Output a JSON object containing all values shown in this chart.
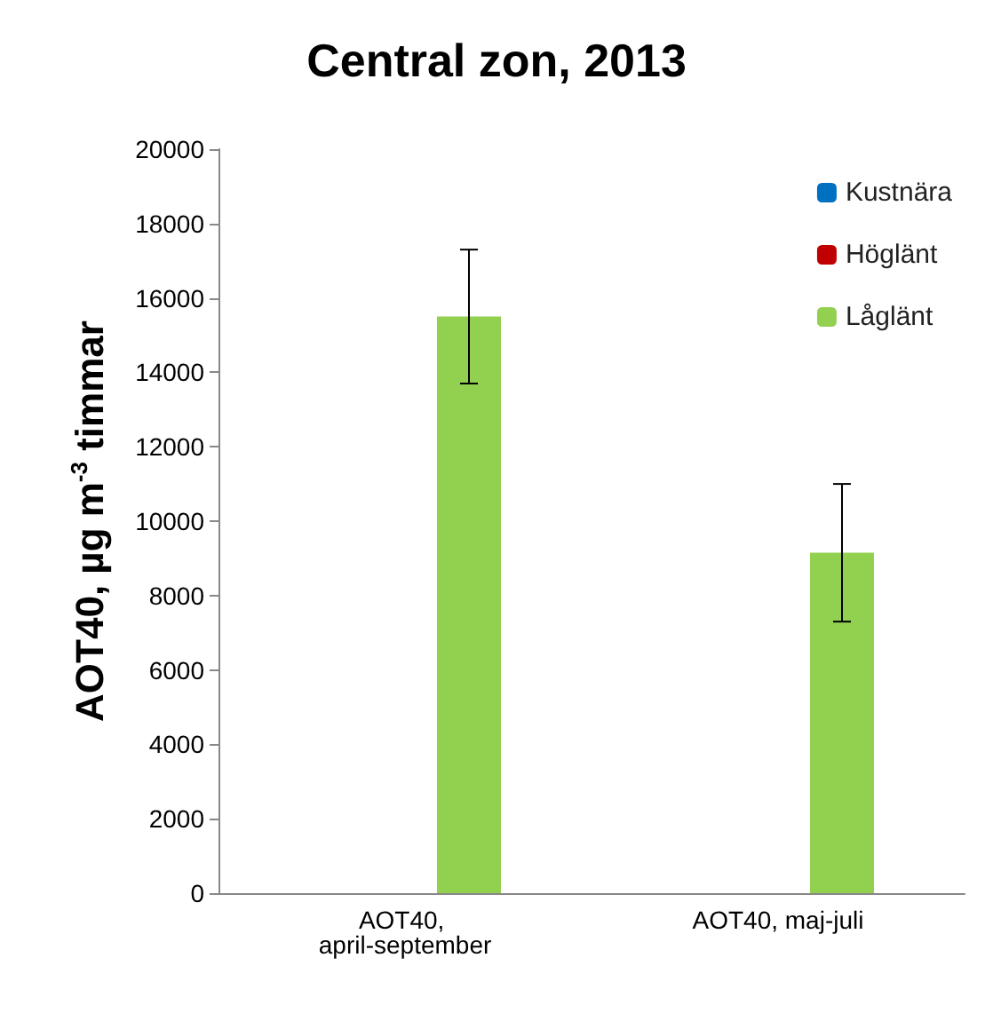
{
  "chart_data": {
    "type": "bar",
    "title": "Central zon, 2013",
    "ylabel": "AOT40, µg m$^{-3}$ timmar",
    "categories": [
      "AOT40, april-september",
      "AOT40, maj-juli"
    ],
    "series": [
      {
        "name": "Kustnära",
        "color": "#0070c0",
        "values": [
          null,
          null
        ]
      },
      {
        "name": "Höglänt",
        "color": "#c00000",
        "values": [
          null,
          null
        ]
      },
      {
        "name": "Låglänt",
        "color": "#92d050",
        "values": [
          15500,
          9150
        ],
        "errors": [
          [
            13700,
            17300
          ],
          [
            7300,
            11000
          ]
        ]
      }
    ],
    "ylim": [
      0,
      20000
    ],
    "yticks": [
      0,
      2000,
      4000,
      6000,
      8000,
      10000,
      12000,
      14000,
      16000,
      18000,
      20000
    ],
    "grid": false,
    "legend": "top right"
  }
}
